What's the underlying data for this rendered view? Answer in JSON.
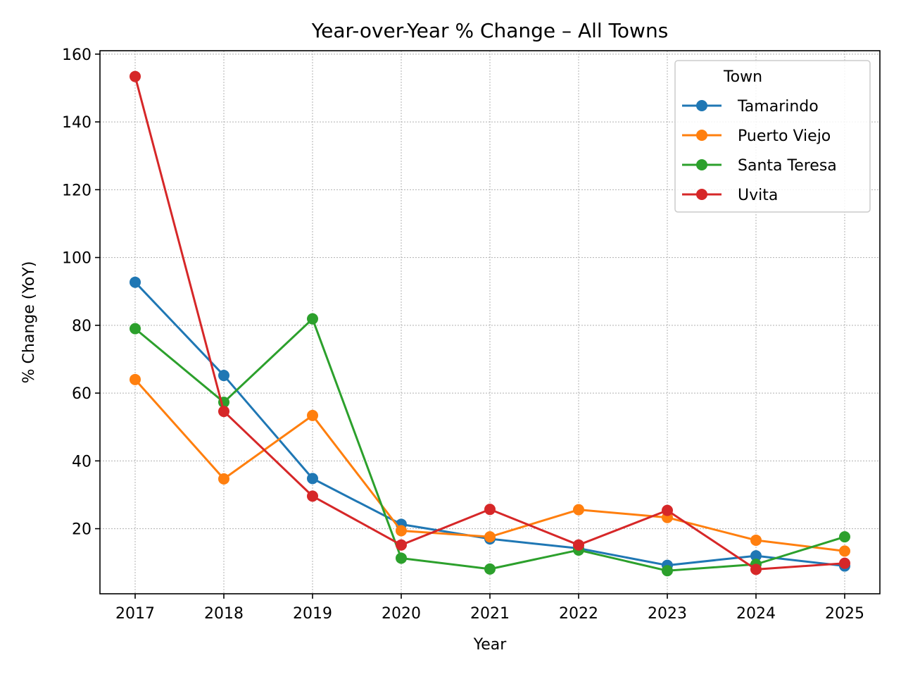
{
  "chart_data": {
    "type": "line",
    "title": "Year-over-Year % Change – All Towns",
    "xlabel": "Year",
    "ylabel": "% Change (YoY)",
    "x": [
      "2017",
      "2018",
      "2019",
      "2020",
      "2021",
      "2022",
      "2023",
      "2024",
      "2025"
    ],
    "ylim": [
      0.8,
      161
    ],
    "yticks": [
      20,
      40,
      60,
      80,
      100,
      120,
      140,
      160
    ],
    "grid": true,
    "legend": {
      "title": "Town",
      "placement": "top-right"
    },
    "series": [
      {
        "name": "Tamarindo",
        "color": "#1f77b4",
        "values": [
          92.7,
          65.2,
          34.8,
          21.3,
          17.0,
          14.2,
          9.2,
          12.0,
          9.0
        ]
      },
      {
        "name": "Puerto Viejo",
        "color": "#ff7f0e",
        "values": [
          64.0,
          34.7,
          53.4,
          19.4,
          17.6,
          25.6,
          23.3,
          16.6,
          13.4
        ]
      },
      {
        "name": "Santa Teresa",
        "color": "#2ca02c",
        "values": [
          79.0,
          57.3,
          81.9,
          11.3,
          8.1,
          13.7,
          7.6,
          9.5,
          17.6
        ]
      },
      {
        "name": "Uvita",
        "color": "#d62728",
        "values": [
          153.4,
          54.6,
          29.6,
          15.2,
          25.7,
          15.2,
          25.4,
          8.0,
          9.8
        ]
      }
    ]
  }
}
